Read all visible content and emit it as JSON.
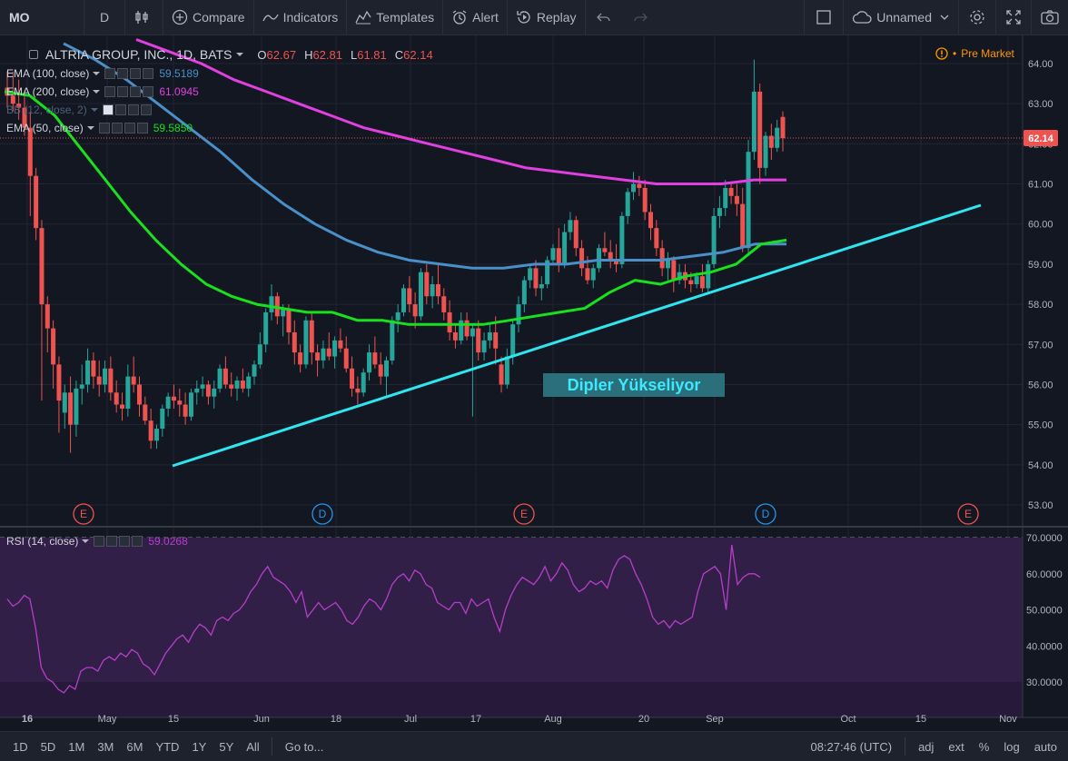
{
  "toolbar": {
    "symbol": "MO",
    "interval": "D",
    "compare": "Compare",
    "indicators": "Indicators",
    "templates": "Templates",
    "alert": "Alert",
    "replay": "Replay",
    "layout_name": "Unnamed"
  },
  "header": {
    "title": "ALTRIA GROUP, INC., 1D, BATS",
    "o_label": "O",
    "o": "62.67",
    "h_label": "H",
    "h": "62.81",
    "l_label": "L",
    "l": "61.81",
    "c_label": "C",
    "c": "62.14",
    "pre_market": "Pre Market"
  },
  "legend": [
    {
      "label": "EMA (100, close)",
      "value": "59.5189",
      "color": "#4a90c8"
    },
    {
      "label": "EMA (200, close)",
      "value": "61.0945",
      "color": "#e040e0"
    },
    {
      "label": "BB (12, close, 2)",
      "value": "",
      "color": "#50627a"
    },
    {
      "label": "EMA (50, close)",
      "value": "59.5850",
      "color": "#19e01e"
    }
  ],
  "rsi_legend": {
    "label": "RSI (14, close)",
    "value": "59.0268",
    "color": "#b53fc8"
  },
  "bottombar": {
    "ranges": [
      "1D",
      "5D",
      "1M",
      "3M",
      "6M",
      "YTD",
      "1Y",
      "5Y",
      "All"
    ],
    "goto": "Go to...",
    "time": "08:27:46 (UTC)",
    "adj": "adj",
    "ext": "ext",
    "pct": "%",
    "log": "log",
    "auto": "auto"
  },
  "colors": {
    "up": "#26a69a",
    "down": "#ef5350",
    "ema50": "#19e01e",
    "ema100": "#4a90c8",
    "ema200": "#e040e0",
    "trend": "#2ee6f0",
    "rsi": "#b53fc8",
    "bg": "#131722",
    "grid": "#232632"
  },
  "chart_data": [
    {
      "type": "candlestick",
      "title": "ALTRIA GROUP, INC., 1D, BATS",
      "ylim": [
        52.6,
        64.4
      ],
      "y_ticks": [
        "53.00",
        "54.00",
        "55.00",
        "56.00",
        "57.00",
        "58.00",
        "59.00",
        "60.00",
        "61.00",
        "62.00",
        "63.00",
        "64.00"
      ],
      "x_tick_labels": [
        "16",
        "May",
        "15",
        "Jun",
        "18",
        "Jul",
        "17",
        "Aug",
        "20",
        "Sep",
        "Oct",
        "15",
        "Nov"
      ],
      "last_price": "62.14",
      "annotation": "Dipler Yükseliyor",
      "event_markers": [
        "E",
        "D",
        "E",
        "D",
        "E"
      ],
      "candles": [
        [
          63.4,
          63.8,
          62.9,
          63.2
        ],
        [
          63.2,
          63.8,
          62.8,
          63.0
        ],
        [
          63.0,
          63.6,
          62.6,
          62.9
        ],
        [
          62.9,
          63.2,
          62.2,
          62.4
        ],
        [
          62.4,
          62.8,
          60.2,
          61.2
        ],
        [
          61.2,
          61.4,
          59.6,
          59.9
        ],
        [
          59.9,
          60.1,
          55.6,
          58.0
        ],
        [
          58.0,
          58.2,
          56.8,
          57.4
        ],
        [
          57.4,
          57.6,
          55.9,
          56.5
        ],
        [
          56.5,
          56.7,
          54.8,
          55.6
        ],
        [
          55.3,
          56.0,
          54.9,
          55.8
        ],
        [
          55.8,
          56.2,
          54.3,
          55.0
        ],
        [
          55.0,
          56.1,
          54.7,
          55.9
        ],
        [
          55.9,
          56.5,
          55.5,
          56.0
        ],
        [
          56.0,
          56.9,
          55.8,
          56.6
        ],
        [
          56.6,
          56.8,
          55.9,
          56.2
        ],
        [
          56.2,
          56.6,
          55.7,
          56.0
        ],
        [
          56.0,
          56.6,
          55.8,
          56.4
        ],
        [
          56.4,
          56.7,
          55.6,
          55.8
        ],
        [
          55.8,
          56.1,
          55.3,
          55.5
        ],
        [
          55.5,
          55.8,
          55.1,
          55.4
        ],
        [
          55.4,
          56.5,
          55.2,
          56.2
        ],
        [
          56.2,
          56.7,
          55.8,
          56.0
        ],
        [
          56.0,
          56.2,
          55.2,
          55.5
        ],
        [
          55.5,
          55.7,
          55.0,
          55.1
        ],
        [
          55.1,
          55.4,
          54.4,
          54.6
        ],
        [
          54.6,
          55.0,
          54.4,
          54.9
        ],
        [
          54.9,
          55.5,
          54.7,
          55.4
        ],
        [
          55.4,
          55.8,
          55.2,
          55.7
        ],
        [
          55.7,
          56.0,
          55.4,
          55.6
        ],
        [
          55.6,
          55.9,
          55.2,
          55.5
        ],
        [
          55.5,
          55.8,
          55.0,
          55.2
        ],
        [
          55.2,
          55.9,
          55.1,
          55.8
        ],
        [
          55.8,
          56.1,
          55.5,
          55.9
        ],
        [
          55.9,
          56.2,
          55.7,
          56.0
        ],
        [
          56.0,
          56.1,
          55.5,
          55.7
        ],
        [
          55.7,
          56.1,
          55.4,
          55.9
        ],
        [
          55.9,
          56.5,
          55.8,
          56.4
        ],
        [
          56.4,
          56.7,
          55.9,
          56.0
        ],
        [
          56.0,
          56.3,
          55.7,
          55.9
        ],
        [
          55.9,
          56.2,
          55.6,
          56.1
        ],
        [
          56.1,
          56.4,
          55.8,
          55.9
        ],
        [
          55.9,
          56.3,
          55.7,
          56.2
        ],
        [
          56.2,
          56.6,
          56.0,
          56.5
        ],
        [
          56.5,
          57.3,
          56.4,
          57.0
        ],
        [
          57.0,
          57.9,
          56.8,
          57.8
        ],
        [
          57.8,
          58.5,
          57.6,
          58.2
        ],
        [
          58.2,
          58.3,
          57.5,
          57.7
        ],
        [
          57.7,
          58.0,
          57.2,
          57.9
        ],
        [
          57.9,
          58.0,
          57.0,
          57.3
        ],
        [
          57.3,
          57.6,
          56.5,
          56.8
        ],
        [
          56.8,
          57.0,
          56.3,
          56.5
        ],
        [
          56.5,
          57.7,
          56.4,
          57.6
        ],
        [
          57.6,
          57.8,
          56.5,
          56.8
        ],
        [
          56.8,
          57.0,
          56.2,
          56.6
        ],
        [
          56.6,
          57.1,
          56.4,
          56.9
        ],
        [
          56.9,
          57.3,
          56.6,
          56.7
        ],
        [
          56.7,
          57.2,
          56.4,
          57.1
        ],
        [
          57.1,
          57.4,
          56.8,
          56.9
        ],
        [
          56.9,
          57.2,
          56.3,
          56.4
        ],
        [
          56.4,
          56.7,
          55.7,
          55.9
        ],
        [
          55.9,
          56.2,
          55.5,
          55.8
        ],
        [
          55.8,
          56.4,
          55.7,
          56.3
        ],
        [
          56.3,
          57.0,
          56.1,
          56.8
        ],
        [
          56.8,
          57.2,
          56.4,
          56.5
        ],
        [
          56.5,
          56.8,
          56.0,
          56.2
        ],
        [
          56.2,
          56.7,
          55.7,
          56.6
        ],
        [
          56.6,
          57.7,
          56.5,
          57.6
        ],
        [
          57.6,
          58.0,
          57.3,
          57.8
        ],
        [
          57.8,
          58.5,
          57.7,
          58.4
        ],
        [
          58.4,
          58.7,
          57.8,
          58.0
        ],
        [
          58.0,
          58.3,
          57.4,
          57.7
        ],
        [
          57.7,
          58.9,
          57.6,
          58.8
        ],
        [
          58.8,
          59.0,
          58.0,
          58.2
        ],
        [
          58.2,
          58.7,
          57.9,
          58.5
        ],
        [
          58.5,
          59.0,
          58.0,
          58.2
        ],
        [
          58.2,
          58.4,
          57.6,
          57.8
        ],
        [
          57.8,
          58.1,
          57.1,
          57.3
        ],
        [
          57.3,
          57.5,
          56.9,
          57.1
        ],
        [
          57.1,
          57.8,
          57.0,
          57.6
        ],
        [
          57.6,
          57.8,
          57.1,
          57.2
        ],
        [
          57.2,
          57.5,
          55.2,
          57.4
        ],
        [
          57.4,
          57.6,
          56.6,
          56.8
        ],
        [
          56.8,
          57.3,
          56.6,
          57.1
        ],
        [
          57.1,
          57.5,
          56.9,
          57.3
        ],
        [
          57.3,
          57.7,
          56.5,
          56.9
        ],
        [
          56.5,
          56.7,
          55.8,
          56.0
        ],
        [
          56.0,
          56.9,
          55.9,
          56.7
        ],
        [
          56.7,
          57.6,
          56.5,
          57.5
        ],
        [
          57.5,
          58.2,
          57.3,
          58.0
        ],
        [
          58.0,
          58.7,
          57.8,
          58.6
        ],
        [
          58.6,
          59.0,
          58.4,
          58.9
        ],
        [
          58.9,
          59.1,
          58.2,
          58.4
        ],
        [
          58.4,
          58.7,
          58.1,
          58.5
        ],
        [
          58.5,
          59.2,
          58.4,
          59.1
        ],
        [
          59.1,
          59.5,
          59.0,
          59.4
        ],
        [
          59.4,
          59.9,
          58.8,
          59.0
        ],
        [
          59.0,
          60.0,
          58.9,
          59.8
        ],
        [
          59.8,
          60.3,
          59.6,
          60.1
        ],
        [
          60.1,
          60.2,
          59.2,
          59.4
        ],
        [
          59.4,
          59.6,
          58.7,
          58.9
        ],
        [
          58.9,
          59.2,
          58.5,
          58.6
        ],
        [
          58.6,
          59.0,
          58.4,
          58.9
        ],
        [
          58.9,
          59.5,
          58.8,
          59.4
        ],
        [
          59.4,
          59.8,
          59.2,
          59.3
        ],
        [
          59.3,
          59.6,
          58.9,
          59.1
        ],
        [
          59.1,
          59.5,
          58.8,
          59.0
        ],
        [
          59.0,
          60.3,
          58.9,
          60.2
        ],
        [
          60.2,
          60.9,
          60.0,
          60.8
        ],
        [
          60.8,
          61.3,
          60.6,
          61.0
        ],
        [
          61.0,
          61.2,
          60.7,
          60.9
        ],
        [
          60.9,
          61.1,
          60.1,
          60.3
        ],
        [
          60.3,
          60.5,
          59.6,
          59.9
        ],
        [
          59.9,
          60.1,
          59.2,
          59.4
        ],
        [
          59.4,
          59.6,
          58.7,
          58.9
        ],
        [
          58.9,
          59.3,
          58.6,
          59.1
        ],
        [
          59.1,
          59.2,
          58.3,
          58.6
        ],
        [
          58.6,
          59.0,
          58.5,
          58.8
        ],
        [
          58.8,
          59.0,
          58.4,
          58.6
        ],
        [
          58.6,
          58.8,
          58.3,
          58.5
        ],
        [
          58.5,
          58.8,
          58.4,
          58.7
        ],
        [
          58.7,
          59.0,
          58.3,
          58.4
        ],
        [
          58.4,
          59.1,
          58.3,
          59.0
        ],
        [
          59.0,
          60.4,
          58.9,
          60.2
        ],
        [
          60.2,
          60.7,
          59.9,
          60.4
        ],
        [
          60.4,
          61.1,
          60.2,
          60.9
        ],
        [
          60.9,
          61.0,
          60.5,
          60.7
        ],
        [
          60.7,
          61.0,
          60.2,
          60.5
        ],
        [
          60.5,
          60.9,
          59.3,
          59.4
        ],
        [
          59.4,
          62.1,
          59.2,
          61.8
        ],
        [
          61.8,
          64.1,
          61.6,
          63.3
        ],
        [
          63.3,
          63.5,
          61.0,
          61.4
        ],
        [
          61.4,
          62.3,
          61.2,
          62.2
        ],
        [
          62.2,
          62.5,
          61.6,
          61.9
        ],
        [
          61.9,
          62.6,
          61.8,
          62.4
        ],
        [
          62.67,
          62.81,
          61.81,
          62.14
        ]
      ],
      "series": [
        {
          "name": "EMA (50, close)",
          "values": [
            63.3,
            63.2,
            62.7,
            61.9,
            61.1,
            60.3,
            59.6,
            59.0,
            58.5,
            58.2,
            58.0,
            57.9,
            57.8,
            57.8,
            57.6,
            57.6,
            57.5,
            57.5,
            57.5,
            57.5,
            57.6,
            57.7,
            57.8,
            57.9,
            58.3,
            58.6,
            58.5,
            58.7,
            58.8,
            59.0,
            59.5,
            59.6
          ]
        },
        {
          "name": "EMA (100, close)",
          "values": [
            64.5,
            64.1,
            63.6,
            63.0,
            62.4,
            61.8,
            61.1,
            60.5,
            60.0,
            59.6,
            59.3,
            59.1,
            59.0,
            58.9,
            58.9,
            59.0,
            59.0,
            59.1,
            59.1,
            59.1,
            59.2,
            59.3,
            59.5,
            59.5
          ]
        },
        {
          "name": "EMA (200, close)",
          "values": [
            64.6,
            64.3,
            64.0,
            63.6,
            63.3,
            63.0,
            62.7,
            62.4,
            62.2,
            62.0,
            61.8,
            61.6,
            61.4,
            61.3,
            61.2,
            61.1,
            61.0,
            61.0,
            61.0,
            61.1,
            61.1
          ]
        }
      ]
    },
    {
      "type": "line",
      "title": "RSI (14, close)",
      "ylim": [
        25,
        72
      ],
      "y_ticks": [
        "30.0000",
        "40.0000",
        "50.0000",
        "60.0000",
        "70.0000"
      ],
      "bands": [
        30,
        70
      ],
      "values": [
        53,
        51,
        52,
        54,
        53,
        45,
        34,
        31,
        30,
        28,
        27,
        29,
        28,
        33,
        34,
        34,
        33,
        36,
        37,
        36,
        38,
        37,
        39,
        38,
        35,
        34,
        32,
        35,
        38,
        40,
        42,
        43,
        41,
        44,
        46,
        45,
        43,
        47,
        48,
        47,
        49,
        50,
        52,
        55,
        57,
        60,
        62,
        59,
        58,
        57,
        55,
        52,
        55,
        48,
        50,
        52,
        50,
        51,
        52,
        50,
        47,
        46,
        48,
        51,
        53,
        52,
        50,
        53,
        57,
        59,
        60,
        58,
        61,
        60,
        57,
        56,
        52,
        51,
        50,
        52,
        52,
        49,
        53,
        51,
        52,
        53,
        48,
        44,
        50,
        54,
        57,
        59,
        58,
        57,
        59,
        62,
        58,
        60,
        63,
        61,
        57,
        55,
        56,
        58,
        57,
        58,
        56,
        61,
        64,
        65,
        64,
        60,
        57,
        53,
        48,
        46,
        47,
        45,
        47,
        46,
        47,
        48,
        55,
        60,
        61,
        62,
        60,
        50,
        68,
        57,
        59,
        60,
        60,
        59
      ]
    }
  ]
}
